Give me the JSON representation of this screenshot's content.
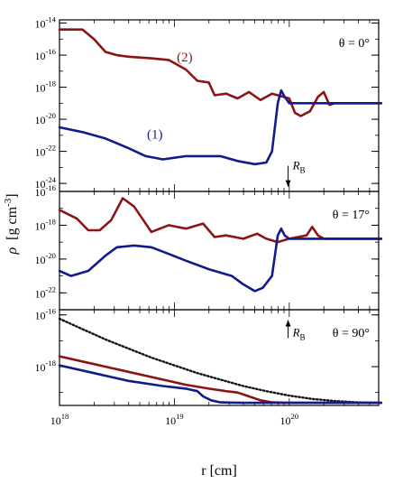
{
  "figure": {
    "ylabel_rho": "ρ",
    "ylabel_units": "[g cm",
    "ylabel_exp": "-3",
    "ylabel_close": "]",
    "xlabel": "r [cm]",
    "x_ticks": [
      {
        "base": "10",
        "exp": "18",
        "value": 1e+18
      },
      {
        "base": "10",
        "exp": "19",
        "value": 1e+19
      },
      {
        "base": "10",
        "exp": "20",
        "value": 1e+20
      }
    ],
    "xlim": [
      1e+18,
      6e+20
    ],
    "xscale": "log",
    "colors": {
      "red": "#8b1414",
      "blue": "#101c8c",
      "black": "#111111"
    }
  },
  "chart_data": [
    {
      "type": "line",
      "panel": "theta = 0°",
      "label_theta": "θ = 0°",
      "yscale": "log",
      "ylim_exp": [
        -24.5,
        -13.8
      ],
      "y_ticks": [
        {
          "base": "10",
          "exp": "-14",
          "value": -14
        },
        {
          "base": "10",
          "exp": "-16",
          "value": -16
        },
        {
          "base": "10",
          "exp": "-18",
          "value": -18
        },
        {
          "base": "10",
          "exp": "-20",
          "value": -20
        },
        {
          "base": "10",
          "exp": "-22",
          "value": -22
        },
        {
          "base": "10",
          "exp": "-24",
          "value": -24
        }
      ],
      "annotations": [
        {
          "text": "(2)",
          "color": "#8b1414",
          "x_log": 19.09,
          "y_exp": -16.4
        },
        {
          "text": "(1)",
          "color": "#101c8c",
          "x_log": 18.83,
          "y_exp": -21.2
        }
      ],
      "rb_marker": {
        "label": "R",
        "sub": "B",
        "x_log": 19.99,
        "direction": "down",
        "y_exp_from": -22.9,
        "y_exp_to": -24.2
      },
      "series": [
        {
          "name": "(2)",
          "color": "#8b1414",
          "x_log": [
            18.0,
            18.2,
            18.3,
            18.4,
            18.5,
            18.6,
            18.8,
            18.95,
            19.1,
            19.2,
            19.3,
            19.35,
            19.45,
            19.55,
            19.65,
            19.75,
            19.85,
            19.9,
            20.0,
            20.05,
            20.1,
            20.18,
            20.25,
            20.3,
            20.35,
            20.4,
            20.8
          ],
          "y_exp": [
            -14.4,
            -14.4,
            -15.0,
            -15.8,
            -16.0,
            -16.1,
            -16.2,
            -16.3,
            -16.9,
            -17.6,
            -17.7,
            -18.5,
            -18.4,
            -18.7,
            -18.3,
            -18.8,
            -18.4,
            -18.5,
            -18.7,
            -19.6,
            -19.8,
            -19.5,
            -18.6,
            -18.3,
            -19.1,
            -19.0,
            -19.0
          ]
        },
        {
          "name": "(1)",
          "color": "#101c8c",
          "x_log": [
            18.0,
            18.2,
            18.4,
            18.6,
            18.75,
            18.9,
            19.0,
            19.1,
            19.2,
            19.4,
            19.55,
            19.7,
            19.8,
            19.85,
            19.9,
            19.93,
            19.96,
            20.0,
            20.05,
            20.8
          ],
          "y_exp": [
            -20.5,
            -20.8,
            -21.2,
            -21.8,
            -22.3,
            -22.5,
            -22.4,
            -22.3,
            -22.3,
            -22.3,
            -22.6,
            -22.8,
            -22.7,
            -22.0,
            -19.0,
            -18.2,
            -18.6,
            -19.0,
            -19.0,
            -19.0
          ]
        }
      ]
    },
    {
      "type": "line",
      "panel": "theta = 17°",
      "label_theta": "θ = 17°",
      "yscale": "log",
      "ylim_exp": [
        -23.0,
        -16.0
      ],
      "y_ticks": [
        {
          "base": "10",
          "exp": "-16",
          "value": -16
        },
        {
          "base": "10",
          "exp": "-18",
          "value": -18
        },
        {
          "base": "10",
          "exp": "-20",
          "value": -20
        },
        {
          "base": "10",
          "exp": "-22",
          "value": -22
        }
      ],
      "series": [
        {
          "name": "(2)",
          "color": "#8b1414",
          "x_log": [
            18.0,
            18.15,
            18.25,
            18.35,
            18.45,
            18.55,
            18.65,
            18.8,
            18.95,
            19.1,
            19.25,
            19.35,
            19.45,
            19.6,
            19.72,
            19.8,
            19.9,
            20.0,
            20.15,
            20.2,
            20.25,
            20.3,
            20.8
          ],
          "y_exp": [
            -17.1,
            -17.6,
            -18.3,
            -18.3,
            -17.7,
            -16.4,
            -16.9,
            -18.4,
            -18.0,
            -18.2,
            -17.9,
            -18.7,
            -18.6,
            -18.8,
            -18.5,
            -18.8,
            -19.0,
            -18.8,
            -18.6,
            -18.1,
            -18.6,
            -18.8,
            -18.8
          ]
        },
        {
          "name": "(1)",
          "color": "#101c8c",
          "x_log": [
            18.0,
            18.1,
            18.25,
            18.4,
            18.5,
            18.65,
            18.8,
            18.95,
            19.1,
            19.3,
            19.5,
            19.6,
            19.7,
            19.77,
            19.85,
            19.9,
            19.93,
            19.96,
            20.0,
            20.05,
            20.8
          ],
          "y_exp": [
            -20.7,
            -21.0,
            -20.7,
            -19.8,
            -19.3,
            -19.2,
            -19.3,
            -19.7,
            -20.1,
            -20.6,
            -21.0,
            -21.5,
            -21.9,
            -21.7,
            -21.0,
            -18.6,
            -18.2,
            -18.6,
            -18.8,
            -18.8,
            -18.8
          ]
        }
      ]
    },
    {
      "type": "line",
      "panel": "theta = 90°",
      "label_theta": "θ = 90°",
      "yscale": "log",
      "ylim_exp": [
        -19.5,
        -15.8
      ],
      "y_ticks": [
        {
          "base": "10",
          "exp": "-16",
          "value": -16
        },
        {
          "base": "10",
          "exp": "-18",
          "value": -18
        }
      ],
      "rb_marker": {
        "label": "R",
        "sub": "B",
        "x_log": 19.99,
        "direction": "up",
        "y_exp_from": -16.9,
        "y_exp_to": -16.2
      },
      "series": [
        {
          "name": "dotted",
          "color": "#111111",
          "style": "dotted",
          "x_log": [
            18.0,
            18.2,
            18.4,
            18.6,
            18.8,
            19.0,
            19.2,
            19.4,
            19.6,
            19.8,
            20.0,
            20.2,
            20.4,
            20.6,
            20.8
          ],
          "y_exp": [
            -16.15,
            -16.55,
            -16.95,
            -17.3,
            -17.65,
            -17.95,
            -18.25,
            -18.5,
            -18.75,
            -18.95,
            -19.12,
            -19.25,
            -19.33,
            -19.38,
            -19.4
          ]
        },
        {
          "name": "(2)",
          "color": "#8b1414",
          "x_log": [
            18.0,
            18.3,
            18.6,
            18.9,
            19.1,
            19.3,
            19.45,
            19.55,
            19.65,
            19.75,
            19.85,
            20.0,
            20.3,
            20.8
          ],
          "y_exp": [
            -17.6,
            -17.9,
            -18.2,
            -18.5,
            -18.7,
            -18.85,
            -18.95,
            -19.0,
            -19.15,
            -19.3,
            -19.38,
            -19.4,
            -19.4,
            -19.4
          ]
        },
        {
          "name": "(1)",
          "color": "#101c8c",
          "x_log": [
            18.0,
            18.3,
            18.6,
            18.9,
            19.1,
            19.2,
            19.25,
            19.32,
            19.4,
            19.6,
            20.0,
            20.8
          ],
          "y_exp": [
            -17.95,
            -18.25,
            -18.55,
            -18.75,
            -18.85,
            -18.95,
            -19.15,
            -19.3,
            -19.38,
            -19.4,
            -19.4,
            -19.4
          ]
        }
      ]
    }
  ]
}
